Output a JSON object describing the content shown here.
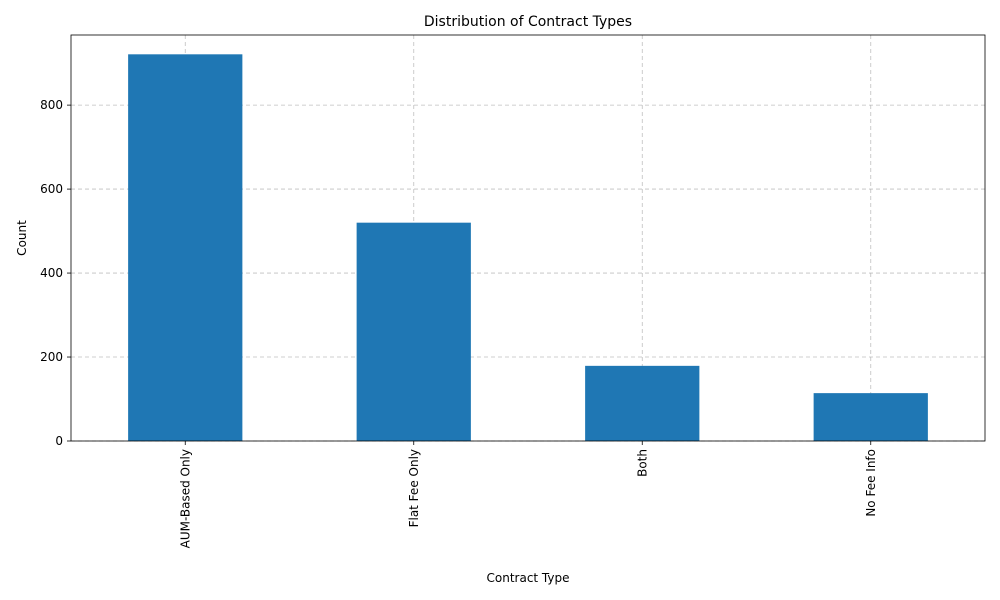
{
  "chart_data": {
    "type": "bar",
    "title": "Distribution of Contract Types",
    "xlabel": "Contract Type",
    "ylabel": "Count",
    "categories": [
      "AUM-Based Only",
      "Flat Fee Only",
      "Both",
      "No Fee Info"
    ],
    "values": [
      921,
      520,
      179,
      114
    ],
    "ylim": [
      0,
      967
    ],
    "yticks": [
      0,
      200,
      400,
      600,
      800
    ],
    "grid": true,
    "bar_color": "#1f77b4",
    "x_tick_rotation": "vertical"
  }
}
